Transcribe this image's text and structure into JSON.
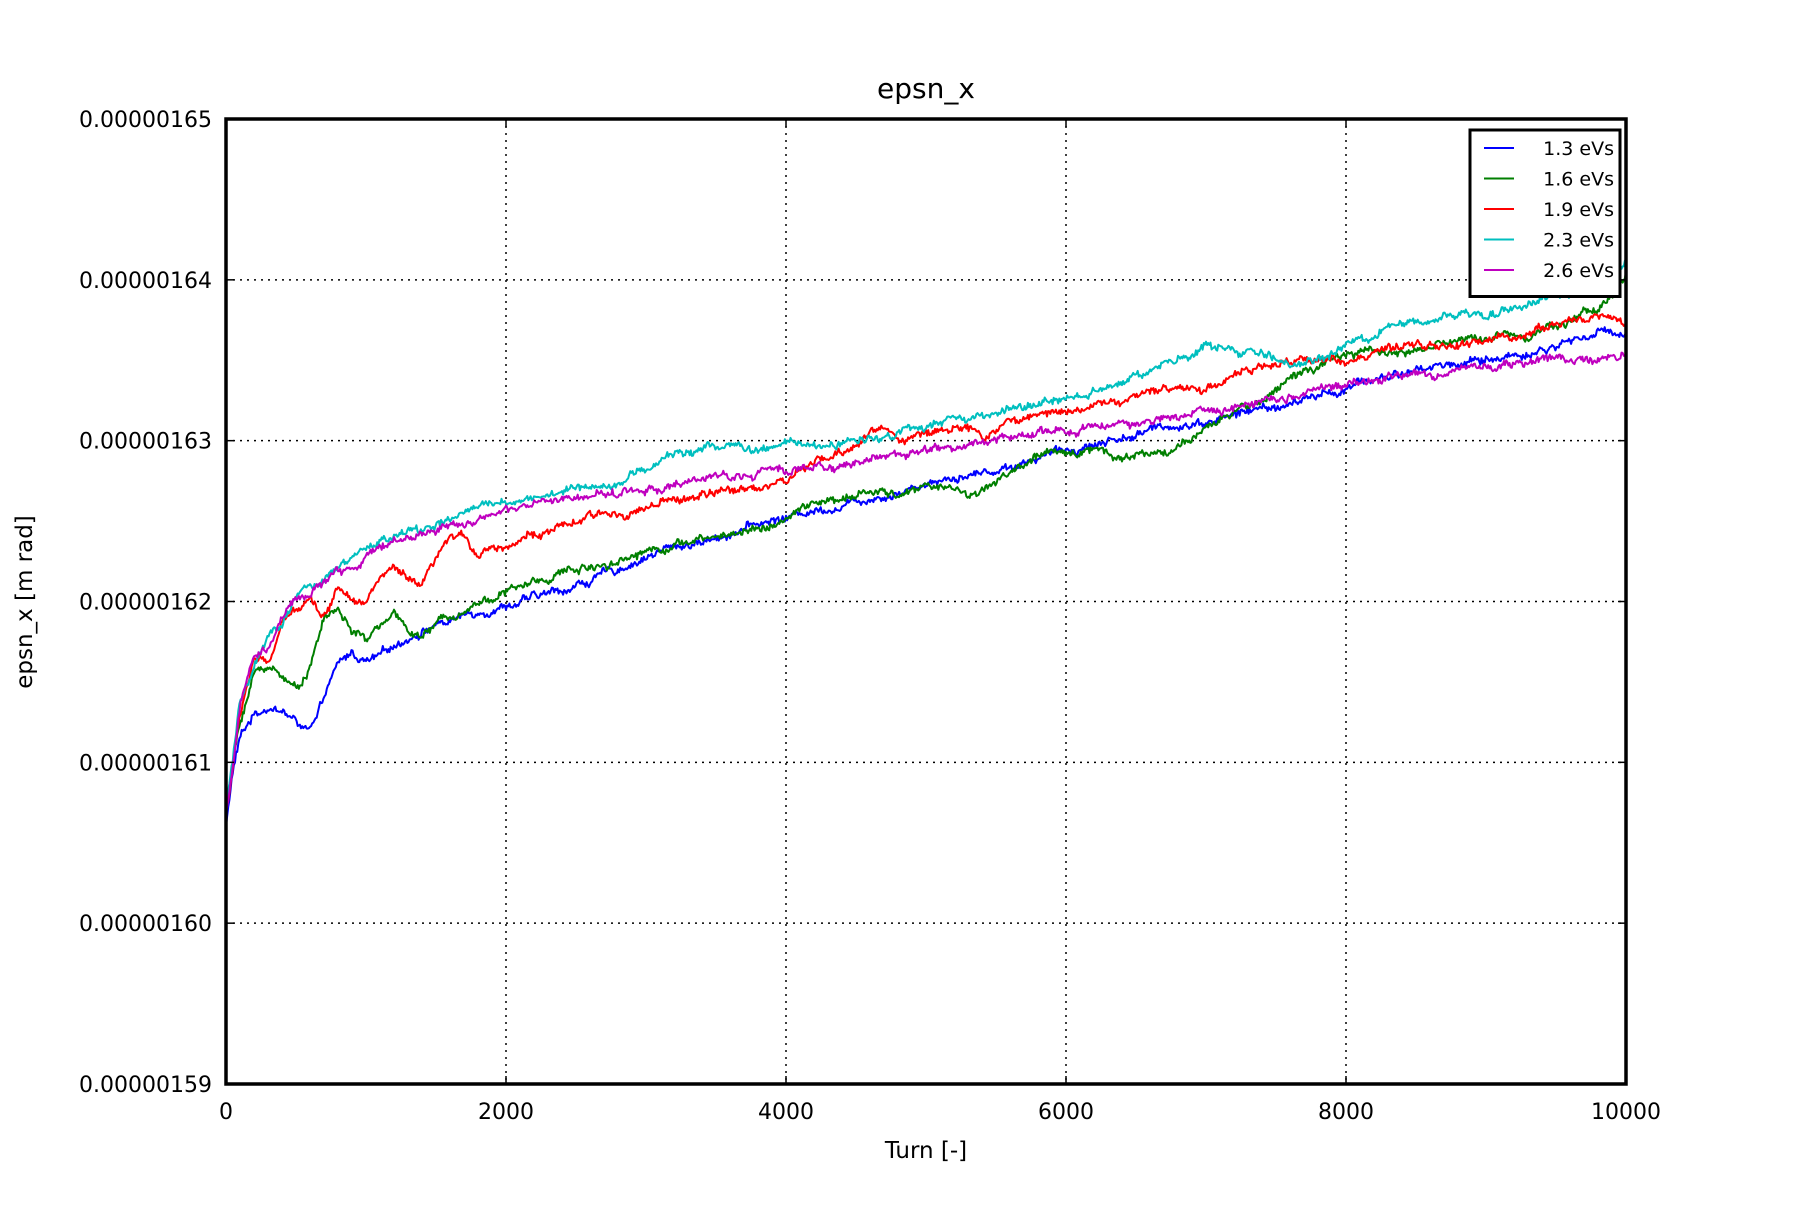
{
  "chart_data": {
    "type": "line",
    "title": "epsn_x",
    "xlabel": "Turn [-]",
    "ylabel": "epsn_x [m rad]",
    "xlim": [
      0,
      10000
    ],
    "ylim": [
      1.59e-06,
      1.65e-06
    ],
    "xticks": [
      0,
      2000,
      4000,
      6000,
      8000,
      10000
    ],
    "xtick_labels": [
      "0",
      "2000",
      "4000",
      "6000",
      "8000",
      "10000"
    ],
    "yticks": [
      1.59e-06,
      1.6e-06,
      1.61e-06,
      1.62e-06,
      1.63e-06,
      1.64e-06,
      1.65e-06
    ],
    "ytick_labels": [
      "0.00000159",
      "0.00000160",
      "0.00000161",
      "0.00000162",
      "0.00000163",
      "0.00000164",
      "0.00000165"
    ],
    "grid": true,
    "legend_position": "top-right",
    "series": [
      {
        "name": "1.3 eVs",
        "color": "#0000ff",
        "noise": 4e-10,
        "x": [
          0,
          50,
          100,
          200,
          300,
          400,
          500,
          600,
          650,
          700,
          800,
          900,
          1000,
          1100,
          1200,
          1300,
          1400,
          1500,
          1600,
          1800,
          2000,
          2200,
          2400,
          2600,
          2800,
          3000,
          3200,
          3400,
          3600,
          3800,
          4000,
          4200,
          4400,
          4600,
          4800,
          5000,
          5200,
          5400,
          5600,
          5800,
          6000,
          6200,
          6400,
          6600,
          6800,
          7000,
          7200,
          7400,
          7600,
          7800,
          8000,
          8200,
          8400,
          8600,
          8800,
          9000,
          9200,
          9400,
          9600,
          9800,
          10000
        ],
        "y": [
          1.606e-06,
          1.6095e-06,
          1.6115e-06,
          1.613e-06,
          1.6135e-06,
          1.6132e-06,
          1.6125e-06,
          1.612e-06,
          1.6125e-06,
          1.614e-06,
          1.616e-06,
          1.6168e-06,
          1.6162e-06,
          1.6165e-06,
          1.6172e-06,
          1.6178e-06,
          1.6182e-06,
          1.6186e-06,
          1.6188e-06,
          1.6194e-06,
          1.6198e-06,
          1.6202e-06,
          1.6207e-06,
          1.6213e-06,
          1.622e-06,
          1.6228e-06,
          1.6234e-06,
          1.6237e-06,
          1.6243e-06,
          1.6248e-06,
          1.6252e-06,
          1.6257e-06,
          1.626e-06,
          1.6265e-06,
          1.6268e-06,
          1.6274e-06,
          1.6278e-06,
          1.628e-06,
          1.6284e-06,
          1.629e-06,
          1.6294e-06,
          1.6298e-06,
          1.6302e-06,
          1.6306e-06,
          1.631e-06,
          1.6312e-06,
          1.6316e-06,
          1.632e-06,
          1.6322e-06,
          1.6328e-06,
          1.6332e-06,
          1.6338e-06,
          1.6342e-06,
          1.6346e-06,
          1.6348e-06,
          1.635e-06,
          1.6353e-06,
          1.6356e-06,
          1.6362e-06,
          1.6367e-06,
          1.6368e-06
        ]
      },
      {
        "name": "1.6 eVs",
        "color": "#007f00",
        "noise": 4e-10,
        "x": [
          0,
          50,
          100,
          200,
          300,
          400,
          500,
          600,
          700,
          800,
          900,
          1000,
          1100,
          1200,
          1300,
          1400,
          1500,
          1600,
          1800,
          2000,
          2200,
          2400,
          2600,
          2800,
          3000,
          3200,
          3400,
          3600,
          3800,
          4000,
          4200,
          4400,
          4600,
          4800,
          5000,
          5200,
          5300,
          5400,
          5600,
          5800,
          6000,
          6200,
          6400,
          6600,
          6800,
          7000,
          7200,
          7400,
          7600,
          7800,
          8000,
          8200,
          8400,
          8600,
          8800,
          9000,
          9200,
          9400,
          9600,
          9800,
          10000
        ],
        "y": [
          1.607e-06,
          1.61e-06,
          1.6125e-06,
          1.6155e-06,
          1.616e-06,
          1.6155e-06,
          1.6145e-06,
          1.616e-06,
          1.619e-06,
          1.6195e-06,
          1.6182e-06,
          1.6175e-06,
          1.6186e-06,
          1.619e-06,
          1.6183e-06,
          1.6178e-06,
          1.6185e-06,
          1.6192e-06,
          1.62e-06,
          1.6206e-06,
          1.6212e-06,
          1.6218e-06,
          1.6222e-06,
          1.6226e-06,
          1.6232e-06,
          1.6236e-06,
          1.6238e-06,
          1.6242e-06,
          1.6246e-06,
          1.625e-06,
          1.6262e-06,
          1.6262e-06,
          1.6268e-06,
          1.6266e-06,
          1.6272e-06,
          1.6272e-06,
          1.6265e-06,
          1.627e-06,
          1.628e-06,
          1.629e-06,
          1.6292e-06,
          1.6296e-06,
          1.629e-06,
          1.6292e-06,
          1.6296e-06,
          1.6305e-06,
          1.6318e-06,
          1.6325e-06,
          1.634e-06,
          1.6345e-06,
          1.6352e-06,
          1.6356e-06,
          1.6355e-06,
          1.6358e-06,
          1.6362e-06,
          1.6365e-06,
          1.6366e-06,
          1.637e-06,
          1.6375e-06,
          1.6382e-06,
          1.6402e-06
        ]
      },
      {
        "name": "1.9 eVs",
        "color": "#ff0000",
        "noise": 4e-10,
        "x": [
          0,
          30,
          100,
          200,
          300,
          400,
          500,
          600,
          700,
          800,
          900,
          1000,
          1100,
          1200,
          1300,
          1400,
          1500,
          1600,
          1700,
          1800,
          1900,
          2000,
          2200,
          2400,
          2600,
          2800,
          3000,
          3200,
          3400,
          3600,
          3800,
          4000,
          4200,
          4400,
          4600,
          4700,
          4800,
          5000,
          5200,
          5400,
          5600,
          5800,
          6000,
          6200,
          6400,
          6600,
          6800,
          7000,
          7200,
          7400,
          7600,
          7800,
          8000,
          8200,
          8400,
          8600,
          8800,
          9000,
          9200,
          9400,
          9600,
          9800,
          10000
        ],
        "y": [
          1.6068e-06,
          1.6085e-06,
          1.613e-06,
          1.6165e-06,
          1.616e-06,
          1.6185e-06,
          1.6195e-06,
          1.6205e-06,
          1.619e-06,
          1.621e-06,
          1.6205e-06,
          1.62e-06,
          1.6215e-06,
          1.622e-06,
          1.6212e-06,
          1.6208e-06,
          1.6225e-06,
          1.6238e-06,
          1.624e-06,
          1.623e-06,
          1.6235e-06,
          1.6235e-06,
          1.6242e-06,
          1.6245e-06,
          1.6252e-06,
          1.6255e-06,
          1.6258e-06,
          1.6262e-06,
          1.6266e-06,
          1.6268e-06,
          1.6272e-06,
          1.6275e-06,
          1.6285e-06,
          1.6292e-06,
          1.6305e-06,
          1.6308e-06,
          1.6302e-06,
          1.6304e-06,
          1.631e-06,
          1.6302e-06,
          1.6312e-06,
          1.6315e-06,
          1.632e-06,
          1.6322e-06,
          1.6325e-06,
          1.6328e-06,
          1.6335e-06,
          1.6332e-06,
          1.6342e-06,
          1.6345e-06,
          1.6348e-06,
          1.6352e-06,
          1.635e-06,
          1.6355e-06,
          1.6356e-06,
          1.636e-06,
          1.6358e-06,
          1.6362e-06,
          1.6365e-06,
          1.637e-06,
          1.6374e-06,
          1.6378e-06,
          1.6374e-06
        ]
      },
      {
        "name": "2.3 eVs",
        "color": "#00bfbf",
        "noise": 4e-10,
        "x": [
          0,
          30,
          100,
          200,
          300,
          400,
          500,
          600,
          700,
          800,
          900,
          1000,
          1100,
          1200,
          1400,
          1600,
          1800,
          2000,
          2200,
          2400,
          2600,
          2800,
          3000,
          3200,
          3400,
          3600,
          3800,
          4000,
          4200,
          4400,
          4600,
          4800,
          5000,
          5200,
          5400,
          5600,
          5800,
          6000,
          6200,
          6400,
          6600,
          6800,
          7000,
          7200,
          7400,
          7600,
          7800,
          8000,
          8200,
          8400,
          8600,
          8800,
          9000,
          9200,
          9400,
          9600,
          9800,
          10000
        ],
        "y": [
          1.6072e-06,
          1.609e-06,
          1.6135e-06,
          1.616e-06,
          1.6175e-06,
          1.6185e-06,
          1.6205e-06,
          1.621e-06,
          1.6212e-06,
          1.622e-06,
          1.6225e-06,
          1.6232e-06,
          1.6238e-06,
          1.624e-06,
          1.6245e-06,
          1.625e-06,
          1.6258e-06,
          1.6262e-06,
          1.6265e-06,
          1.6268e-06,
          1.6272e-06,
          1.6275e-06,
          1.6282e-06,
          1.6292e-06,
          1.6295e-06,
          1.6298e-06,
          1.6292e-06,
          1.6298e-06,
          1.6296e-06,
          1.6298e-06,
          1.6302e-06,
          1.6306e-06,
          1.6308e-06,
          1.6312e-06,
          1.6315e-06,
          1.6318e-06,
          1.6322e-06,
          1.6326e-06,
          1.6332e-06,
          1.6338e-06,
          1.6342e-06,
          1.635e-06,
          1.6358e-06,
          1.6356e-06,
          1.6352e-06,
          1.6348e-06,
          1.6352e-06,
          1.6358e-06,
          1.6365e-06,
          1.6372e-06,
          1.6375e-06,
          1.6378e-06,
          1.638e-06,
          1.6384e-06,
          1.6388e-06,
          1.6392e-06,
          1.6398e-06,
          1.6408e-06
        ]
      },
      {
        "name": "2.6 eVs",
        "color": "#bf00bf",
        "noise": 4e-10,
        "x": [
          0,
          30,
          100,
          200,
          300,
          400,
          500,
          600,
          700,
          800,
          900,
          1000,
          1100,
          1200,
          1400,
          1600,
          1800,
          2000,
          2200,
          2400,
          2600,
          2800,
          3000,
          3200,
          3400,
          3600,
          3800,
          4000,
          4200,
          4400,
          4600,
          4800,
          5000,
          5200,
          5400,
          5600,
          5800,
          6000,
          6200,
          6400,
          6600,
          6800,
          7000,
          7200,
          7400,
          7600,
          7800,
          8000,
          8200,
          8400,
          8600,
          8800,
          9000,
          9200,
          9400,
          9600,
          9800,
          10000
        ],
        "y": [
          1.607e-06,
          1.6085e-06,
          1.6135e-06,
          1.6165e-06,
          1.617e-06,
          1.619e-06,
          1.62e-06,
          1.6205e-06,
          1.6212e-06,
          1.6218e-06,
          1.622e-06,
          1.6228e-06,
          1.6232e-06,
          1.6238e-06,
          1.6242e-06,
          1.6248e-06,
          1.6252e-06,
          1.6255e-06,
          1.626e-06,
          1.6262e-06,
          1.6265e-06,
          1.6268e-06,
          1.627e-06,
          1.6272e-06,
          1.6275e-06,
          1.6278e-06,
          1.628e-06,
          1.6282e-06,
          1.6284e-06,
          1.6285e-06,
          1.6288e-06,
          1.6292e-06,
          1.6294e-06,
          1.6296e-06,
          1.63e-06,
          1.6302e-06,
          1.6304e-06,
          1.6306e-06,
          1.6308e-06,
          1.631e-06,
          1.6312e-06,
          1.6315e-06,
          1.6318e-06,
          1.6322e-06,
          1.6326e-06,
          1.6329e-06,
          1.6332e-06,
          1.6335e-06,
          1.6337e-06,
          1.634e-06,
          1.6342e-06,
          1.6344e-06,
          1.6346e-06,
          1.6348e-06,
          1.635e-06,
          1.6352e-06,
          1.6352e-06,
          1.6352e-06
        ]
      }
    ]
  }
}
